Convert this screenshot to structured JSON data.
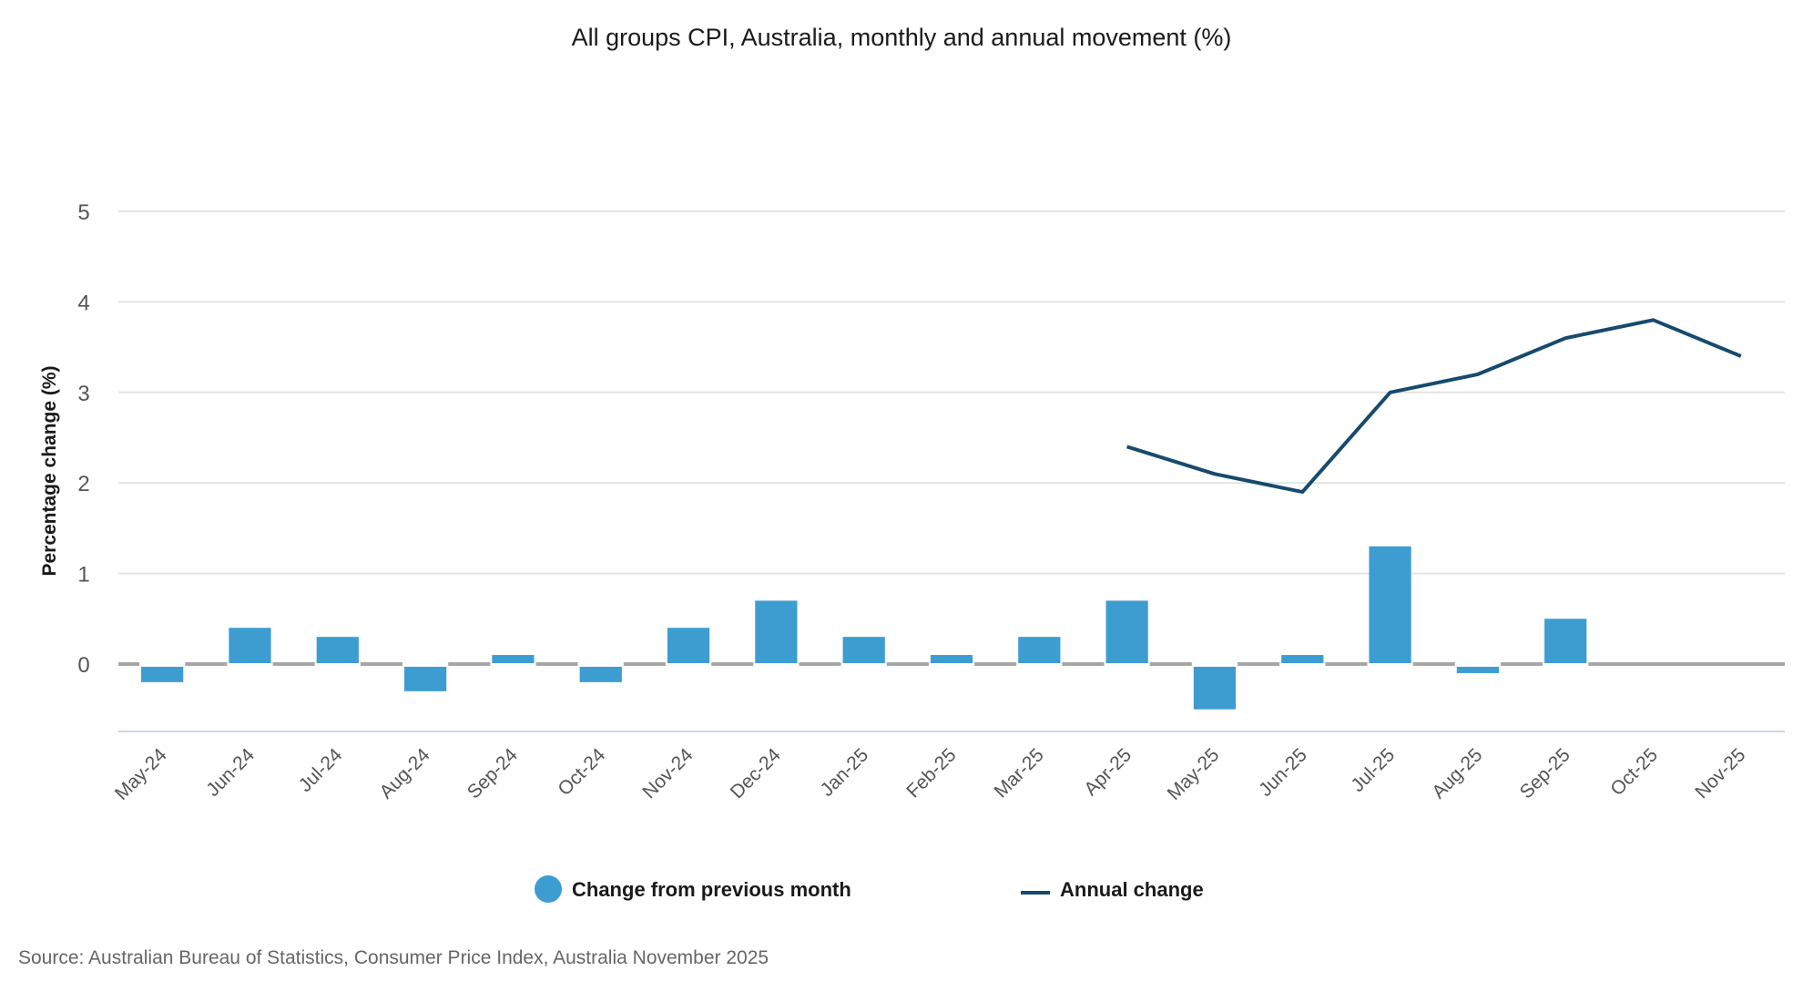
{
  "chart_data": {
    "type": "bar",
    "title": "All groups CPI, Australia, monthly and annual movement (%)",
    "xlabel": "",
    "ylabel": "Percentage change (%)",
    "ylim": [
      -0.75,
      5
    ],
    "yticks": [
      0,
      1,
      2,
      3,
      4,
      5
    ],
    "grid": true,
    "legend_position": "bottom",
    "categories": [
      "May-24",
      "Jun-24",
      "Jul-24",
      "Aug-24",
      "Sep-24",
      "Oct-24",
      "Nov-24",
      "Dec-24",
      "Jan-25",
      "Feb-25",
      "Mar-25",
      "Apr-25",
      "May-25",
      "Jun-25",
      "Jul-25",
      "Aug-25",
      "Sep-25",
      "Oct-25",
      "Nov-25"
    ],
    "series": [
      {
        "name": "Change from previous month",
        "type": "bar",
        "color": "#3d9dd1",
        "values": [
          -0.2,
          0.4,
          0.3,
          -0.3,
          0.1,
          -0.2,
          0.4,
          0.7,
          0.3,
          0.1,
          0.3,
          0.7,
          -0.5,
          0.1,
          1.3,
          -0.1,
          0.5,
          null,
          null
        ]
      },
      {
        "name": "Annual change",
        "type": "line",
        "color": "#174a6e",
        "values": [
          null,
          null,
          null,
          null,
          null,
          null,
          null,
          null,
          null,
          null,
          null,
          2.4,
          2.1,
          1.9,
          3.0,
          3.2,
          3.6,
          3.8,
          3.4
        ]
      }
    ],
    "source": "Source: Australian Bureau of Statistics, Consumer Price Index, Australia November 2025"
  },
  "colors": {
    "gridline": "#e4e4e4",
    "zero_line": "#a6a6a6",
    "axis_line": "#ccd6eb"
  }
}
